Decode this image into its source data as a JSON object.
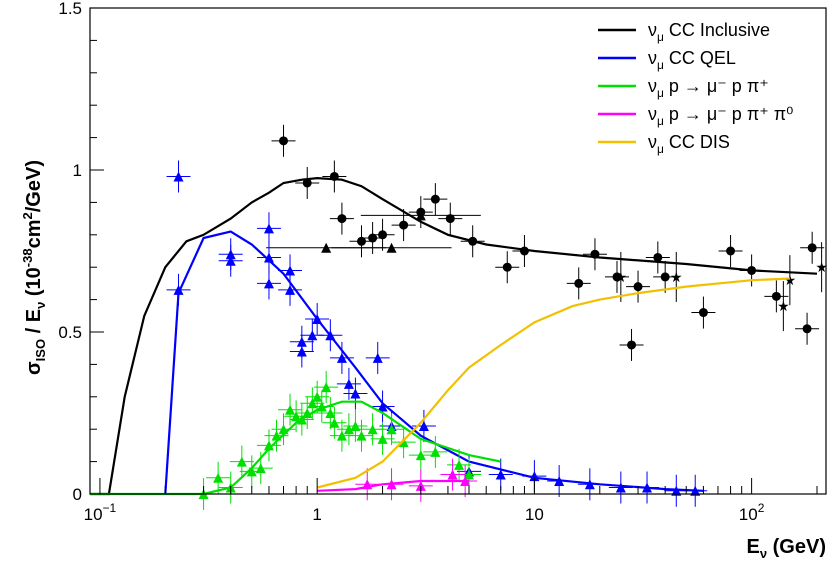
{
  "chart_data": {
    "type": "line",
    "xlabel": "E_ν (GeV)",
    "ylabel": "σ_ISO / E_ν (10^-38 cm²/GeV)",
    "x_scale": "log",
    "xlim": [
      0.09,
      220
    ],
    "ylim": [
      0,
      1.5
    ],
    "grid": false,
    "legend_position": "top-right",
    "x_tick_labels": [
      {
        "value": 0.1,
        "base": "10",
        "exp": "−1"
      },
      {
        "value": 1,
        "base": "1",
        "exp": ""
      },
      {
        "value": 10,
        "base": "10",
        "exp": ""
      },
      {
        "value": 100,
        "base": "10",
        "exp": "2"
      }
    ],
    "y_tick_labels": [
      {
        "value": 0,
        "label": "0"
      },
      {
        "value": 0.5,
        "label": "0.5"
      },
      {
        "value": 1,
        "label": "1"
      },
      {
        "value": 1.5,
        "label": "1.5"
      }
    ],
    "series": [
      {
        "name": "ν_μ CC Inclusive",
        "color": "#000000",
        "curve": [
          [
            0.09,
            0
          ],
          [
            0.11,
            0
          ],
          [
            0.13,
            0.3
          ],
          [
            0.16,
            0.55
          ],
          [
            0.2,
            0.7
          ],
          [
            0.25,
            0.78
          ],
          [
            0.3,
            0.8
          ],
          [
            0.4,
            0.85
          ],
          [
            0.5,
            0.9
          ],
          [
            0.6,
            0.93
          ],
          [
            0.7,
            0.96
          ],
          [
            0.85,
            0.97
          ],
          [
            1,
            0.975
          ],
          [
            1.3,
            0.97
          ],
          [
            1.6,
            0.95
          ],
          [
            2,
            0.91
          ],
          [
            3,
            0.84
          ],
          [
            4,
            0.8
          ],
          [
            6,
            0.77
          ],
          [
            10,
            0.75
          ],
          [
            20,
            0.73
          ],
          [
            50,
            0.71
          ],
          [
            100,
            0.69
          ],
          [
            200,
            0.68
          ]
        ],
        "points": [
          [
            0.7,
            1.09
          ],
          [
            0.9,
            0.96
          ],
          [
            1.2,
            0.98
          ],
          [
            1.3,
            0.85
          ],
          [
            1.6,
            0.78
          ],
          [
            1.8,
            0.79
          ],
          [
            2,
            0.8
          ],
          [
            2.5,
            0.83
          ],
          [
            3,
            0.87
          ],
          [
            3.5,
            0.91
          ],
          [
            4.1,
            0.85
          ],
          [
            5.2,
            0.78
          ],
          [
            7.5,
            0.7
          ],
          [
            9,
            0.75
          ],
          [
            16,
            0.65
          ],
          [
            19,
            0.74
          ],
          [
            24,
            0.67
          ],
          [
            28,
            0.46
          ],
          [
            30,
            0.64
          ],
          [
            37,
            0.73
          ],
          [
            40,
            0.67
          ],
          [
            60,
            0.56
          ],
          [
            80,
            0.75
          ],
          [
            100,
            0.69
          ],
          [
            130,
            0.61
          ],
          [
            180,
            0.51
          ],
          [
            190,
            0.76
          ]
        ],
        "triangles": [
          [
            1.1,
            0.76
          ],
          [
            3,
            0.86
          ],
          [
            2.2,
            0.76
          ]
        ],
        "stars": [
          [
            25,
            0.67
          ],
          [
            45,
            0.67
          ],
          [
            140,
            0.58
          ],
          [
            150,
            0.66
          ],
          [
            210,
            0.7
          ]
        ]
      },
      {
        "name": "ν_μ CC QEL",
        "color": "#0000ff",
        "curve": [
          [
            0.2,
            0
          ],
          [
            0.23,
            0.62
          ],
          [
            0.3,
            0.79
          ],
          [
            0.4,
            0.81
          ],
          [
            0.5,
            0.77
          ],
          [
            0.7,
            0.68
          ],
          [
            1,
            0.54
          ],
          [
            1.5,
            0.39
          ],
          [
            2,
            0.28
          ],
          [
            3,
            0.18
          ],
          [
            5,
            0.1
          ],
          [
            10,
            0.05
          ],
          [
            20,
            0.03
          ],
          [
            40,
            0.015
          ],
          [
            60,
            0.01
          ]
        ],
        "points": [
          [
            0.23,
            0.98
          ],
          [
            0.23,
            0.63
          ],
          [
            0.4,
            0.74
          ],
          [
            0.4,
            0.72
          ],
          [
            0.6,
            0.82
          ],
          [
            0.6,
            0.73
          ],
          [
            0.6,
            0.65
          ],
          [
            0.75,
            0.69
          ],
          [
            0.75,
            0.63
          ],
          [
            0.85,
            0.47
          ],
          [
            0.85,
            0.44
          ],
          [
            0.95,
            0.49
          ],
          [
            1,
            0.54
          ],
          [
            1.15,
            0.49
          ],
          [
            1.3,
            0.42
          ],
          [
            1.4,
            0.34
          ],
          [
            1.5,
            0.31
          ],
          [
            1.9,
            0.42
          ],
          [
            2,
            0.27
          ],
          [
            2.2,
            0.21
          ],
          [
            3.1,
            0.21
          ],
          [
            5,
            0.07
          ],
          [
            7,
            0.06
          ],
          [
            10,
            0.055
          ],
          [
            13,
            0.04
          ],
          [
            18,
            0.03
          ],
          [
            25,
            0.02
          ],
          [
            33,
            0.02
          ],
          [
            45,
            0.01
          ],
          [
            55,
            0.01
          ]
        ]
      },
      {
        "name": "ν_μ p → μ⁻ p π⁺",
        "color": "#00e000",
        "curve": [
          [
            0.09,
            0
          ],
          [
            0.3,
            0
          ],
          [
            0.4,
            0.02
          ],
          [
            0.5,
            0.08
          ],
          [
            0.6,
            0.14
          ],
          [
            0.8,
            0.22
          ],
          [
            1,
            0.26
          ],
          [
            1.3,
            0.285
          ],
          [
            1.6,
            0.285
          ],
          [
            2,
            0.25
          ],
          [
            3,
            0.17
          ],
          [
            5,
            0.12
          ],
          [
            7,
            0.1
          ]
        ],
        "points": [
          [
            0.3,
            0
          ],
          [
            0.35,
            0.05
          ],
          [
            0.4,
            0.02
          ],
          [
            0.45,
            0.1
          ],
          [
            0.5,
            0.07
          ],
          [
            0.55,
            0.08
          ],
          [
            0.6,
            0.15
          ],
          [
            0.65,
            0.18
          ],
          [
            0.7,
            0.2
          ],
          [
            0.75,
            0.26
          ],
          [
            0.8,
            0.24
          ],
          [
            0.85,
            0.23
          ],
          [
            0.9,
            0.25
          ],
          [
            0.95,
            0.28
          ],
          [
            1,
            0.3
          ],
          [
            1.05,
            0.27
          ],
          [
            1.1,
            0.33
          ],
          [
            1.15,
            0.25
          ],
          [
            1.2,
            0.22
          ],
          [
            1.3,
            0.18
          ],
          [
            1.4,
            0.2
          ],
          [
            1.5,
            0.21
          ],
          [
            1.6,
            0.18
          ],
          [
            1.8,
            0.2
          ],
          [
            2,
            0.17
          ],
          [
            2.2,
            0.2
          ],
          [
            2.5,
            0.16
          ],
          [
            3,
            0.12
          ],
          [
            3.5,
            0.13
          ],
          [
            4.5,
            0.09
          ],
          [
            5,
            0.06
          ]
        ]
      },
      {
        "name": "ν_μ p → μ⁻ p π⁺ π⁰",
        "color": "#ff00ff",
        "curve": [
          [
            1,
            0.01
          ],
          [
            1.5,
            0.015
          ],
          [
            2,
            0.03
          ],
          [
            3,
            0.04
          ],
          [
            4,
            0.04
          ],
          [
            5,
            0.04
          ]
        ],
        "points": [
          [
            1.7,
            0.03
          ],
          [
            2.2,
            0.03
          ],
          [
            3,
            0.025
          ],
          [
            4.2,
            0.06
          ],
          [
            4.8,
            0.04
          ]
        ]
      },
      {
        "name": "ν_μ CC DIS",
        "color": "#f2c000",
        "curve": [
          [
            1,
            0.02
          ],
          [
            1.5,
            0.05
          ],
          [
            2,
            0.1
          ],
          [
            3,
            0.22
          ],
          [
            4,
            0.32
          ],
          [
            5,
            0.39
          ],
          [
            7,
            0.46
          ],
          [
            10,
            0.53
          ],
          [
            15,
            0.58
          ],
          [
            20,
            0.6
          ],
          [
            30,
            0.62
          ],
          [
            50,
            0.64
          ],
          [
            100,
            0.66
          ],
          [
            150,
            0.665
          ]
        ]
      }
    ]
  },
  "legend": [
    {
      "label": "ν",
      "sub": "μ",
      "rest": " CC Inclusive",
      "color": "#000000"
    },
    {
      "label": "ν",
      "sub": "μ",
      "rest": " CC QEL",
      "color": "#0000ff"
    },
    {
      "label": "ν",
      "sub": "μ",
      "rest": " p → μ⁻ p π⁺",
      "color": "#00e000"
    },
    {
      "label": "ν",
      "sub": "μ",
      "rest": " p → μ⁻ p π⁺ π⁰",
      "color": "#ff00ff"
    },
    {
      "label": "ν",
      "sub": "μ",
      "rest": " CC DIS",
      "color": "#f2c000"
    }
  ]
}
